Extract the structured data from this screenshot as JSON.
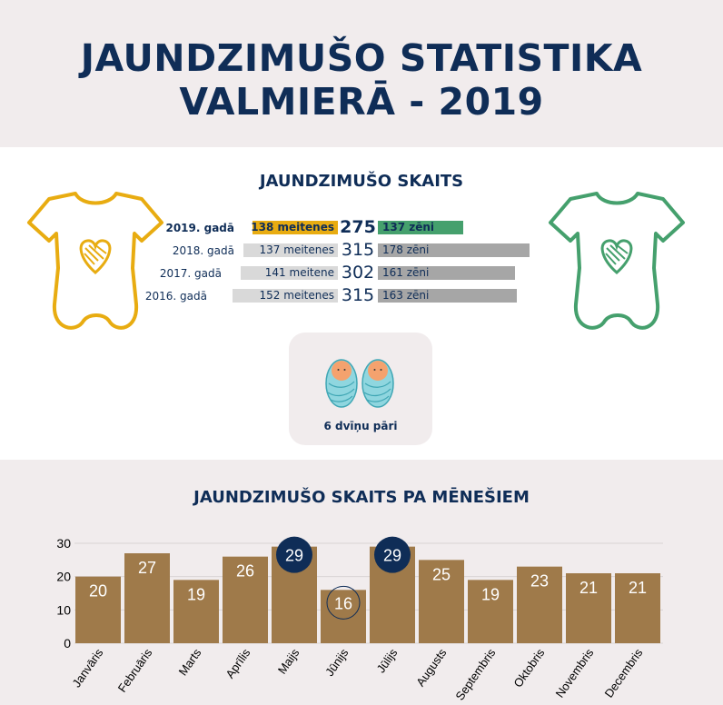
{
  "header": {
    "title_line1": "JAUNDZIMUŠO STATISTIKA",
    "title_line2": "VALMIERĀ - 2019"
  },
  "summary": {
    "title": "JAUNDZIMUŠO SKAITS",
    "rows": [
      {
        "year": "2019. gadā",
        "girls": "138 meitenes",
        "total": "275",
        "boys": "137 zēni",
        "girls_n": 138,
        "boys_n": 137,
        "highlight": true
      },
      {
        "year": "2018. gadā",
        "girls": "137 meitenes",
        "total": "315",
        "boys": "178 zēni",
        "girls_n": 137,
        "boys_n": 178,
        "highlight": false
      },
      {
        "year": "2017. gadā",
        "girls": "141 meitene",
        "total": "302",
        "boys": "161 zēni",
        "girls_n": 141,
        "boys_n": 161,
        "highlight": false
      },
      {
        "year": "2016. gadā",
        "girls": "152 meitenes",
        "total": "315",
        "boys": "163 zēni",
        "girls_n": 152,
        "boys_n": 163,
        "highlight": false
      }
    ],
    "colors": {
      "girls_highlight": "#e8ac11",
      "boys_highlight": "#45a06d",
      "past": "#a6a6a6",
      "past_girls": "#d9d9d9",
      "onesie_girl": "#e8ac11",
      "onesie_boy": "#45a06d"
    },
    "twins": {
      "label": "6 dvīņu pāri",
      "icon": "twin-babies-icon"
    }
  },
  "chart_data": {
    "type": "bar",
    "title": "JAUNDZIMUŠO SKAITS PA MĒNEŠIEM",
    "categories": [
      "Janvāris",
      "Februāris",
      "Marts",
      "Aprīlis",
      "Maijs",
      "Jūnijs",
      "Jūlijs",
      "Augusts",
      "Septembris",
      "Oktobris",
      "Novembris",
      "Decembris"
    ],
    "values": [
      20,
      27,
      19,
      26,
      29,
      16,
      29,
      25,
      19,
      23,
      21,
      21
    ],
    "ylim": [
      0,
      30
    ],
    "yticks": [
      0,
      10,
      20,
      30
    ],
    "max_markers": [
      4,
      6
    ],
    "min_markers": [
      5
    ],
    "bar_color": "#9f7a4a",
    "marker_color": "#0f2d57",
    "grid": true
  }
}
